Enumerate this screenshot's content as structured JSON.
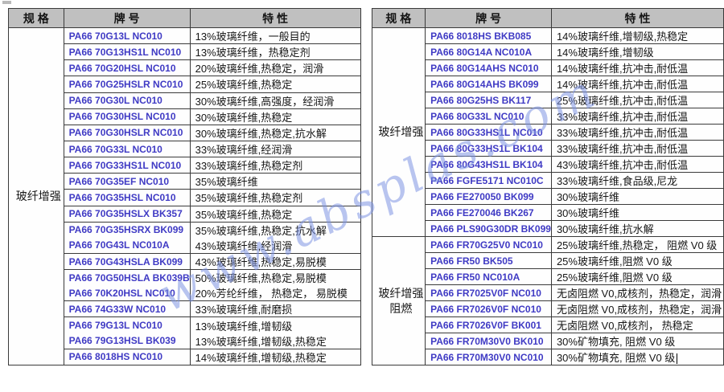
{
  "watermark": {
    "text": "www.absplas.com"
  },
  "tables": [
    {
      "name": "left",
      "headers": {
        "spec": "规 格",
        "grade": "牌 号",
        "feature": "特 性"
      },
      "sections": [
        {
          "spec": "玻纤增强",
          "rows": [
            {
              "grade": "PA66 70G13L NC010",
              "feature": "13%玻璃纤维，一般目的"
            },
            {
              "grade": "PA66 70G13HS1L NC010",
              "feature": "13%玻璃纤维，热稳定剂"
            },
            {
              "grade": "PA66 70G20HSL NC010",
              "feature": "20%玻璃纤维,热稳定，润滑"
            },
            {
              "grade": "PA66 70G25HSLR NC010",
              "feature": "25%玻璃纤维,热稳定"
            },
            {
              "grade": "PA66 70G30L NC010",
              "feature": "30%玻璃纤维,高强度，经润滑"
            },
            {
              "grade": "PA66 70G30HSL NC010",
              "feature": "30%玻璃纤维,热稳定"
            },
            {
              "grade": "PA66 70G30HSLR NC010",
              "feature": "30%玻璃纤维,热稳定,抗水解"
            },
            {
              "grade": "PA66 70G33L NC010",
              "feature": "33%玻璃纤维,经润滑"
            },
            {
              "grade": "PA66 70G33HS1L NC010",
              "feature": "33%玻璃纤维,热稳定剂"
            },
            {
              "grade": "PA66 70G35EF NC010",
              "feature": "35%玻璃纤维"
            },
            {
              "grade": "PA66 70G35HSL NC010",
              "feature": "35%玻璃纤维,热稳定剂"
            },
            {
              "grade": "PA66 70G35HSLX BK357",
              "feature": "35%玻璃纤维,热稳定"
            },
            {
              "grade": "PA66 70G35HSRX BK099",
              "feature": "35%玻璃纤维,热稳定,抗水解",
              "joined": true
            },
            {
              "grade": "PA66 70G43L NC010A",
              "feature": "43%玻璃纤维,经润滑"
            },
            {
              "grade": "PA66 70G43HSLA BK099",
              "feature": "43%玻璃纤维,热稳定,易脱模"
            },
            {
              "grade": "PA66 70G50HSLA BK039B",
              "feature": "50%玻璃纤维,热稳定,易脱模",
              "joined": true
            },
            {
              "grade": "PA66 70K20HSL NC010",
              "feature": "20%芳纶纤维， 热稳定， 易脱模"
            },
            {
              "grade": "PA66 74G33W NC010",
              "feature": "33%玻璃纤维,耐磨损"
            },
            {
              "grade": "PA66 79G13L NC010",
              "feature": "13%玻璃纤维,增韧级",
              "joined": true
            },
            {
              "grade": "PA66 79G13HSL BK039",
              "feature": "13%玻璃纤维,增韧级,热稳定"
            },
            {
              "grade": "PA66 8018HS NC010",
              "feature": "14%玻璃纤维,增韧级,热稳定"
            }
          ]
        }
      ]
    },
    {
      "name": "right",
      "headers": {
        "spec": "规 格",
        "grade": "牌 号",
        "feature": "特 性"
      },
      "sections": [
        {
          "spec": "玻纤增强",
          "rows": [
            {
              "grade": "PA66 8018HS BKB085",
              "feature": "14%玻璃纤维,增韧级,热稳定"
            },
            {
              "grade": "PA66 80G14A NC010A",
              "feature": "14%玻璃纤维,增韧级"
            },
            {
              "grade": "PA66 80G14AHS NC010",
              "feature": "14%玻璃纤维,抗冲击,耐低温"
            },
            {
              "grade": "PA66 80G14AHS BK099",
              "feature": "14%玻璃纤维,抗冲击,耐低温"
            },
            {
              "grade": "PA66 80G25HS BK117",
              "feature": "25%玻璃纤维,抗冲击,耐低温"
            },
            {
              "grade": "PA66 80G33L NC010",
              "feature": "33%玻璃纤维,抗冲击,耐低温"
            },
            {
              "grade": "PA66 80G33HS1L NC010",
              "feature": "33%玻璃纤维,抗冲击,耐低温"
            },
            {
              "grade": "PA66 80G33HS1L BK104",
              "feature": "33%玻璃纤维,抗冲击,耐低温"
            },
            {
              "grade": "PA66 80G43HS1L BK104",
              "feature": "43%玻璃纤维,抗冲击,耐低温"
            },
            {
              "grade": "PA66 FGFE5171 NC010C",
              "feature": "33%玻璃纤维,食品级,尼龙"
            },
            {
              "grade": "PA66 FE270050 BK099",
              "feature": "30%玻璃纤维"
            },
            {
              "grade": "PA66 FE270046 BK267",
              "feature": "30%玻璃纤维"
            },
            {
              "grade": "PA66 PLS90G30DR BK099",
              "feature": "30%玻璃纤维,抗水解"
            }
          ]
        },
        {
          "spec": "玻纤增强\n阻燃",
          "rows": [
            {
              "grade": "PA66 FR70G25V0 NC010",
              "feature": "25%玻璃纤维,热稳定， 阻燃 V0 级"
            },
            {
              "grade": "PA66 FR50 BK505",
              "feature": "25%玻璃纤维,阻燃 V0 级"
            },
            {
              "grade": "PA66 FR50 NC010A",
              "feature": "25%玻璃纤维,阻燃 V0 级"
            },
            {
              "grade": "PA66 FR7025V0F NC010",
              "feature": "无卤阻燃 V0,成核剂，热稳定，润滑"
            },
            {
              "grade": "PA66 FR7026V0F NC010",
              "feature": "无卤阻燃 V0,成核剂，热稳定，润滑"
            },
            {
              "grade": "PA66 FR7026V0F BK001",
              "feature": "无卤阻燃 V0,成核剂， 热稳定"
            },
            {
              "grade": "PA66 FR70M30V0 BK010",
              "feature": "30%矿物填充, 阻燃 V0 级"
            },
            {
              "grade": "PA66 FR70M30V0 NC010",
              "feature": "30%矿物填充, 阻燃 V0 级",
              "cursor": true
            }
          ]
        }
      ]
    }
  ]
}
